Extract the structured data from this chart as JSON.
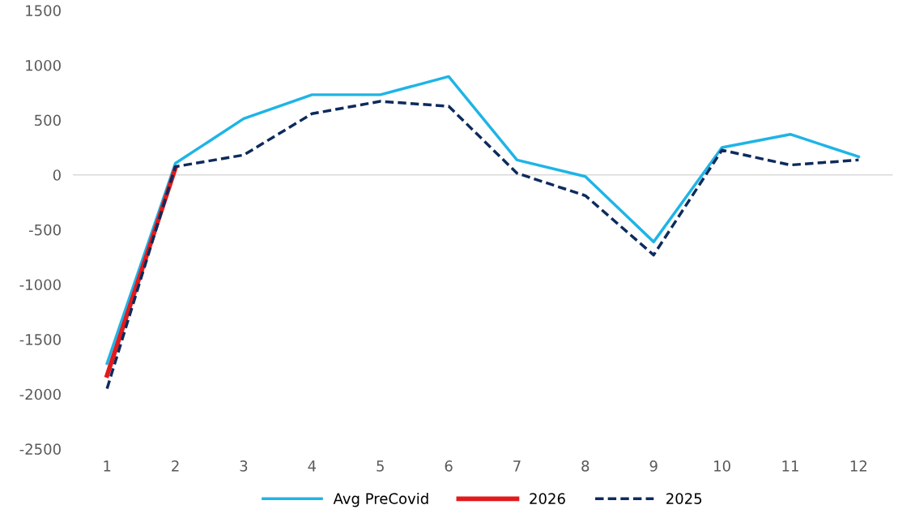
{
  "chart_data": {
    "type": "line",
    "categories": [
      "1",
      "2",
      "3",
      "4",
      "5",
      "6",
      "7",
      "8",
      "9",
      "10",
      "11",
      "12"
    ],
    "series": [
      {
        "name": "Avg PreCovid",
        "color": "#1fb4e6",
        "line_style": "solid",
        "values": [
          -1720,
          105,
          513,
          731,
          731,
          897,
          136,
          -15,
          -611,
          249,
          370,
          166
        ]
      },
      {
        "name": "2026",
        "color": "#e31a1c",
        "line_style": "solid",
        "values": [
          -1830,
          60,
          null,
          null,
          null,
          null,
          null,
          null,
          null,
          null,
          null,
          null
        ]
      },
      {
        "name": "2025",
        "color": "#0d2b5c",
        "line_style": "dashed",
        "values": [
          -1950,
          75,
          181,
          558,
          671,
          626,
          15,
          -189,
          -731,
          226,
          90,
          136
        ]
      }
    ],
    "ylim": [
      -2500,
      1500
    ],
    "yticks": [
      -2500,
      -2000,
      -1500,
      -1000,
      -500,
      0,
      500,
      1000,
      1500
    ],
    "ref_lines": [
      {
        "axis": "y",
        "value": 0,
        "color": "#d9d9d9"
      }
    ],
    "grid": false,
    "legend": "bottom",
    "marker": "none"
  }
}
